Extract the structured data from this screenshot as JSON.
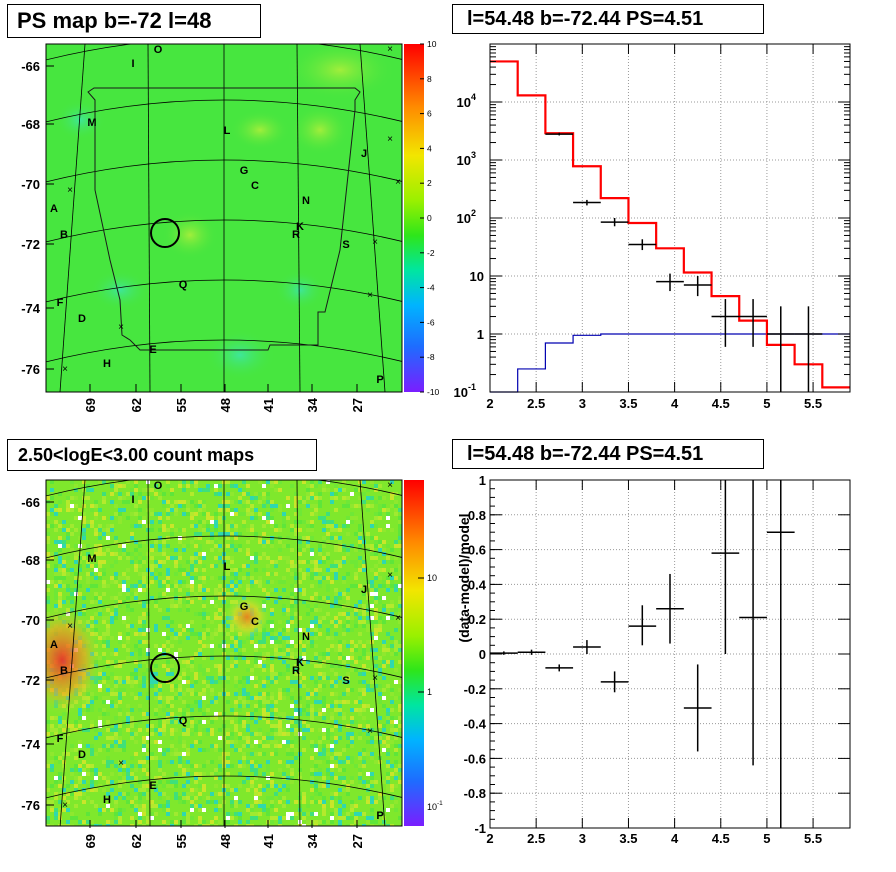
{
  "panels": {
    "top_left": {
      "title": "PS map b=-72 l=48"
    },
    "top_right": {
      "title": "l=54.48 b=-72.44 PS=4.51"
    },
    "bottom_left": {
      "title": "2.50<logE<3.00 count maps"
    },
    "bottom_right": {
      "title": "l=54.48 b=-72.44 PS=4.51"
    }
  },
  "colors": {
    "map_green": "#47e63f",
    "data": "#000000",
    "model": "#ff0000",
    "background_model": "#0000b0",
    "grid": "#9a9a9a"
  },
  "sky_maps": {
    "y_ticks": [
      "-66",
      "-68",
      "-70",
      "-72",
      "-74",
      "-76"
    ],
    "x_ticks": [
      "69",
      "62",
      "55",
      "48",
      "41",
      "34",
      "27"
    ],
    "source_labels": [
      "O",
      "I",
      "M",
      "L",
      "J",
      "G",
      "C",
      "A",
      "N",
      "B",
      "K",
      "R",
      "S",
      "Q",
      "F",
      "D",
      "E",
      "H",
      "P"
    ],
    "ps_colorbar_ticks": [
      "10",
      "8",
      "6",
      "4",
      "2",
      "0",
      "-2",
      "-4",
      "-6",
      "-8",
      "-10"
    ],
    "count_colorbar_ticks": [
      "10",
      "1"
    ],
    "count_colorbar_small_tick": {
      "base": "10",
      "exp": "-1"
    }
  },
  "chart_data": [
    {
      "type": "line",
      "panel": "spectrum",
      "xlim": [
        2,
        5.9
      ],
      "ylim": [
        0.1,
        100000
      ],
      "log_y": true,
      "grid": true,
      "x_ticks": [
        "2",
        "2.5",
        "3",
        "3.5",
        "4",
        "4.5",
        "5",
        "5.5"
      ],
      "x_tick_values": [
        2,
        2.5,
        3,
        3.5,
        4,
        4.5,
        5,
        5.5
      ],
      "y_ticks": [
        {
          "value": 10000,
          "base": "10",
          "exp": "4"
        },
        {
          "value": 1000,
          "base": "10",
          "exp": "3"
        },
        {
          "value": 100,
          "base": "10",
          "exp": "2"
        },
        {
          "value": 10,
          "base": "10",
          "exp": ""
        },
        {
          "value": 1,
          "base": "1",
          "exp": ""
        },
        {
          "value": 0.1,
          "base": "10",
          "exp": "-1"
        }
      ],
      "model_edges": [
        2,
        2.3,
        2.6,
        2.9,
        3.2,
        3.5,
        3.8,
        4.1,
        4.4,
        4.7,
        5.0,
        5.3,
        5.6,
        5.9
      ],
      "model_values": [
        50000,
        13000,
        2900,
        780,
        220,
        82,
        30,
        11.5,
        4.5,
        1.7,
        0.65,
        0.3,
        0.12
      ],
      "background_values": [
        0.04,
        0.25,
        0.7,
        0.95,
        1.0,
        1.0,
        1.0,
        1.0,
        1.0,
        1.0,
        1.0,
        1.0,
        1.0
      ],
      "data_points": [
        {
          "x": 2.75,
          "y": 2800,
          "xerr": 0.15,
          "lo": 2650,
          "hi": 2950
        },
        {
          "x": 3.05,
          "y": 185,
          "xerr": 0.15,
          "lo": 165,
          "hi": 205
        },
        {
          "x": 3.35,
          "y": 85,
          "xerr": 0.15,
          "lo": 72,
          "hi": 100
        },
        {
          "x": 3.65,
          "y": 35,
          "xerr": 0.15,
          "lo": 28,
          "hi": 43
        },
        {
          "x": 3.95,
          "y": 8,
          "xerr": 0.15,
          "lo": 5.5,
          "hi": 11
        },
        {
          "x": 4.25,
          "y": 7,
          "xerr": 0.15,
          "lo": 4.5,
          "hi": 10
        },
        {
          "x": 4.55,
          "y": 2,
          "xerr": 0.15,
          "lo": 0.6,
          "hi": 4
        },
        {
          "x": 4.85,
          "y": 2,
          "xerr": 0.15,
          "lo": 0.6,
          "hi": 4
        },
        {
          "x": 5.15,
          "y": 1,
          "xerr": 0.15,
          "lo": 0.1,
          "hi": 3
        },
        {
          "x": 5.45,
          "y": 1,
          "xerr": 0.15,
          "lo": 0.1,
          "hi": 3
        }
      ]
    },
    {
      "type": "scatter",
      "panel": "residuals",
      "ylabel": "(data-model)/model",
      "xlim": [
        2,
        5.9
      ],
      "ylim": [
        -1,
        1
      ],
      "grid": true,
      "x_ticks": [
        "2",
        "2.5",
        "3",
        "3.5",
        "4",
        "4.5",
        "5",
        "5.5"
      ],
      "x_tick_values": [
        2,
        2.5,
        3,
        3.5,
        4,
        4.5,
        5,
        5.5
      ],
      "y_ticks": [
        "1",
        "0.8",
        "0.6",
        "0.4",
        "0.2",
        "0",
        "-0.2",
        "-0.4",
        "-0.6",
        "-0.8",
        "-1"
      ],
      "y_tick_values": [
        1,
        0.8,
        0.6,
        0.4,
        0.2,
        0,
        -0.2,
        -0.4,
        -0.6,
        -0.8,
        -1
      ],
      "data_points": [
        {
          "x": 2.15,
          "y": 0.005,
          "xerr": 0.15,
          "lo": -0.005,
          "hi": 0.015
        },
        {
          "x": 2.45,
          "y": 0.01,
          "xerr": 0.15,
          "lo": -0.005,
          "hi": 0.025
        },
        {
          "x": 2.75,
          "y": -0.08,
          "xerr": 0.15,
          "lo": -0.1,
          "hi": -0.06
        },
        {
          "x": 3.05,
          "y": 0.04,
          "xerr": 0.15,
          "lo": 0.0,
          "hi": 0.08
        },
        {
          "x": 3.35,
          "y": -0.16,
          "xerr": 0.15,
          "lo": -0.22,
          "hi": -0.1
        },
        {
          "x": 3.65,
          "y": 0.16,
          "xerr": 0.15,
          "lo": 0.05,
          "hi": 0.28
        },
        {
          "x": 3.95,
          "y": 0.26,
          "xerr": 0.15,
          "lo": 0.06,
          "hi": 0.46
        },
        {
          "x": 4.25,
          "y": -0.31,
          "xerr": 0.15,
          "lo": -0.56,
          "hi": -0.06
        },
        {
          "x": 4.55,
          "y": 0.58,
          "xerr": 0.15,
          "lo": 0.0,
          "hi": 1.0
        },
        {
          "x": 4.85,
          "y": 0.21,
          "xerr": 0.15,
          "lo": -0.64,
          "hi": 1.0
        },
        {
          "x": 5.15,
          "y": 0.7,
          "xerr": 0.15,
          "lo": -1.0,
          "hi": 1.0
        }
      ]
    }
  ]
}
